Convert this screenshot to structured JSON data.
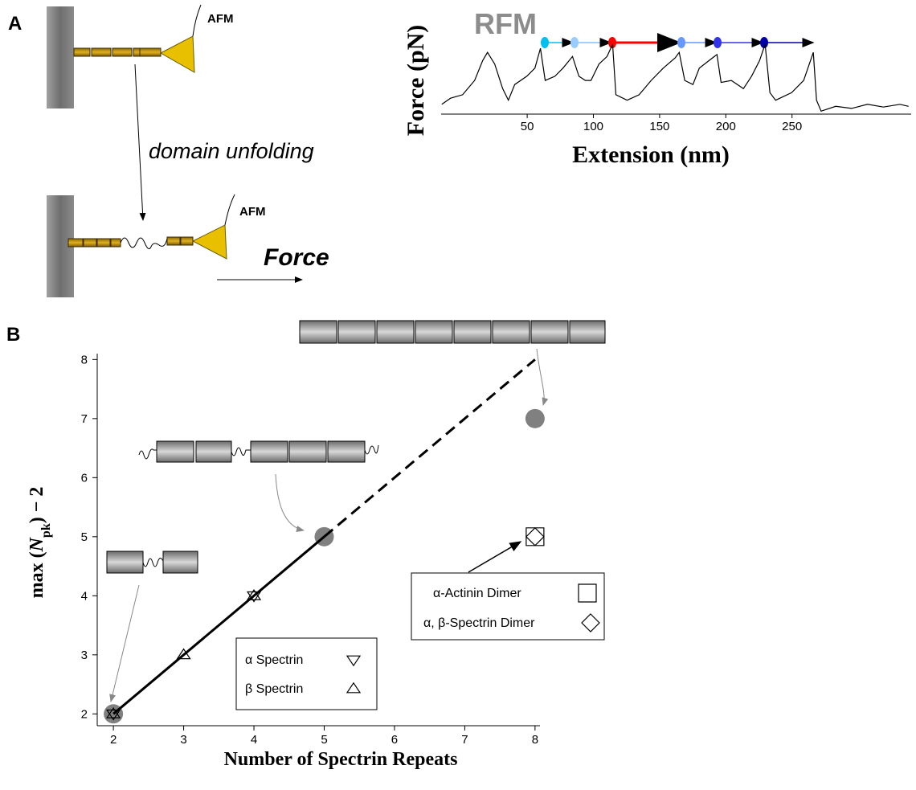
{
  "panel_labels": [
    "A",
    "B"
  ],
  "schematic": {
    "afm_labels": [
      "AFM",
      "AFM"
    ],
    "caption": "domain unfolding",
    "force": "Force"
  },
  "chart_data": [
    {
      "type": "line",
      "title": "RFM",
      "x_label": "Extension (nm)",
      "y_label": "Force (pN)",
      "xlim": [
        -15,
        340
      ],
      "ylim": [
        0,
        100
      ],
      "xticks": [
        50,
        100,
        150,
        200,
        250
      ],
      "color": "#000000",
      "x": [
        -14.5,
        -7.9,
        1.2,
        10.3,
        16.4,
        20,
        25.5,
        31.5,
        35.8,
        40.6,
        49.7,
        55.8,
        60,
        63.6,
        70.9,
        77,
        84.2,
        89.1,
        93.9,
        98.2,
        104.2,
        110.3,
        114.5,
        117,
        125.5,
        134.5,
        143.6,
        152.7,
        161.8,
        164.8,
        169,
        175.2,
        180,
        187.3,
        193.3,
        196.4,
        204.2,
        213.3,
        219.4,
        225.5,
        229.7,
        233.3,
        237.6,
        249.7,
        258.8,
        266.1,
        268.5,
        272,
        283,
        295,
        307,
        319,
        331.5,
        338
      ],
      "values": [
        12,
        21,
        26,
        47,
        76,
        88,
        71,
        35,
        18,
        41,
        53,
        65,
        94,
        47,
        53,
        65,
        82,
        53,
        47,
        47,
        71,
        82,
        100,
        26,
        18,
        26,
        47,
        65,
        80,
        88,
        47,
        41,
        65,
        76,
        85,
        44,
        47,
        35,
        53,
        76,
        100,
        29,
        18,
        29,
        47,
        88,
        18,
        2,
        9,
        6,
        12,
        8,
        12,
        9
      ]
    },
    {
      "type": "scatter",
      "x_label": "Number of Spectrin Repeats",
      "y_label": [
        "max (",
        "N",
        "pk",
        ") − 2"
      ],
      "xlim": [
        1.77,
        8.07
      ],
      "ylim": [
        1.8,
        8.1
      ],
      "xticks": [
        2,
        3,
        4,
        5,
        6,
        7,
        8
      ],
      "yticks": [
        2,
        3,
        4,
        5,
        6,
        7,
        8
      ],
      "fit": [
        {
          "style": "solid",
          "color": "#000000",
          "x": [
            2,
            5
          ],
          "values": [
            2,
            5
          ]
        },
        {
          "style": "dashed",
          "color": "#000000",
          "x": [
            5,
            8
          ],
          "values": [
            5,
            8
          ]
        }
      ],
      "points": {
        "marker": "circle",
        "color": "#808080",
        "x": [
          2,
          5,
          8
        ],
        "values": [
          2,
          5,
          7
        ]
      },
      "series": [
        {
          "name": "α Spectrin",
          "marker": "triangle-down",
          "color": "#000000",
          "x": [
            2,
            4
          ],
          "values": [
            2,
            4
          ]
        },
        {
          "name": "β Spectrin",
          "marker": "triangle-up",
          "color": "#000000",
          "x": [
            2,
            3,
            4
          ],
          "values": [
            2,
            3,
            4
          ]
        },
        {
          "name": "α-Actinin Dimer",
          "marker": "square",
          "color": "#000000",
          "x": [
            8
          ],
          "values": [
            5
          ]
        },
        {
          "name": "α, β-Spectrin Dimer",
          "marker": "diamond",
          "color": "#000000",
          "x": [
            8
          ],
          "values": [
            5
          ]
        }
      ]
    }
  ]
}
